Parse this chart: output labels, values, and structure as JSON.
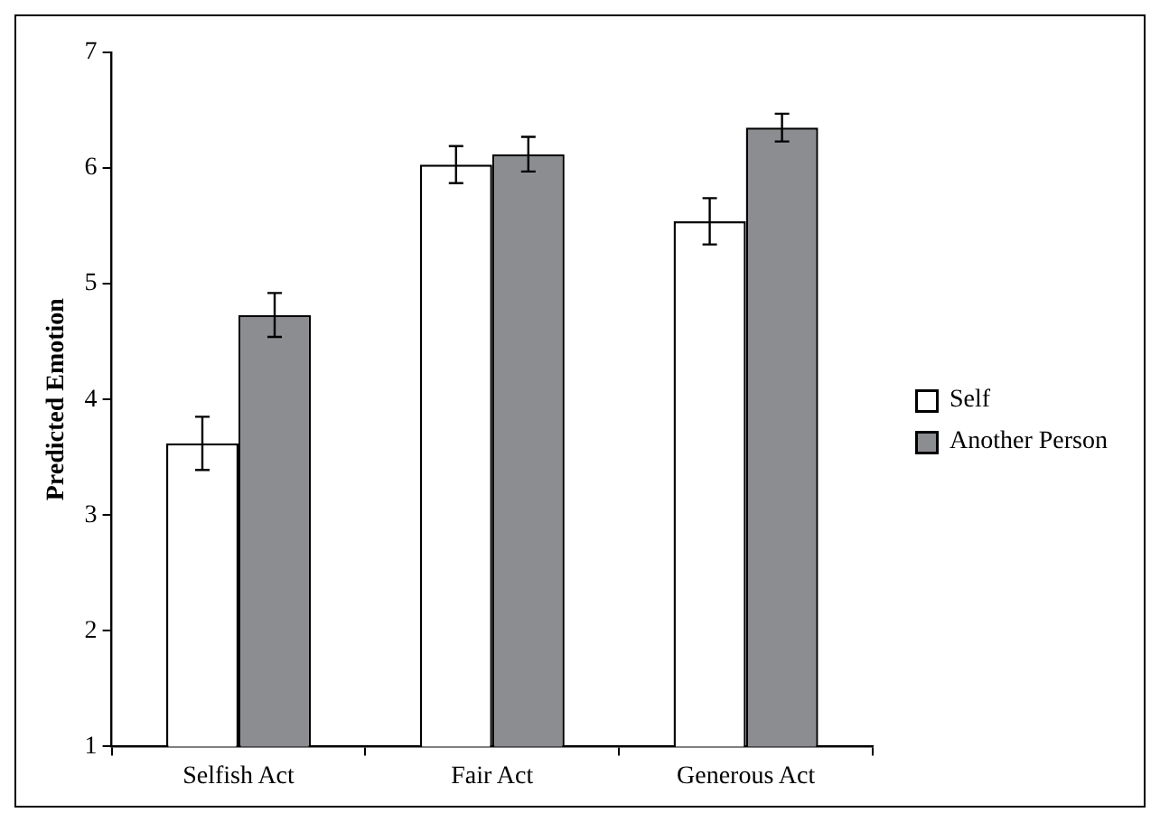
{
  "chart_data": {
    "type": "bar",
    "ylabel": "Predicted Emotion",
    "categories": [
      "Selfish Act",
      "Fair Act",
      "Generous Act"
    ],
    "series": [
      {
        "name": "Self",
        "color": "#ffffff",
        "values": [
          3.62,
          6.03,
          5.54
        ],
        "errors": [
          0.23,
          0.16,
          0.2
        ]
      },
      {
        "name": "Another Person",
        "color": "#8c8d90",
        "values": [
          4.73,
          6.12,
          6.35
        ],
        "errors": [
          0.19,
          0.15,
          0.12
        ]
      }
    ],
    "ylim": [
      1,
      7
    ],
    "yticks": [
      1,
      2,
      3,
      4,
      5,
      6,
      7
    ],
    "grid": false,
    "legend": "right"
  }
}
